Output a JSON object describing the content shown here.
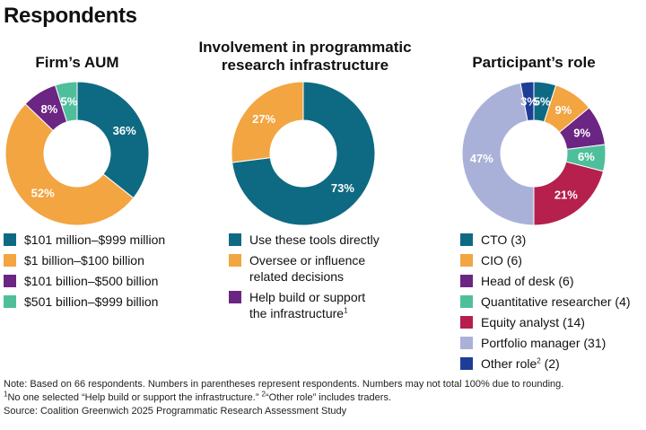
{
  "page": {
    "title": "Respondents"
  },
  "colors": {
    "teal": "#0e6a82",
    "orange": "#f2a541",
    "purple": "#6b2583",
    "green": "#4fbf9b",
    "crimson": "#b5204d",
    "lavender": "#aab1d9",
    "navy": "#1d3d96"
  },
  "chart_data": [
    {
      "type": "pie",
      "title": "Firm’s AUM",
      "start_angle_deg": 0,
      "series": [
        {
          "name": "$101 million–$999 million",
          "value": 36,
          "label": "36%",
          "color": "#0e6a82"
        },
        {
          "name": "$1 billion–$100 billion",
          "value": 52,
          "label": "52%",
          "color": "#f2a541"
        },
        {
          "name": "$101 billion–$500 billion",
          "value": 8,
          "label": "8%",
          "color": "#6b2583"
        },
        {
          "name": "$501 billion–$999 billion",
          "value": 5,
          "label": "5%",
          "color": "#4fbf9b"
        }
      ]
    },
    {
      "type": "pie",
      "title": "Involvement in programmatic\nresearch infrastructure",
      "start_angle_deg": 0,
      "series": [
        {
          "name": "Use these tools directly",
          "value": 73,
          "label": "73%",
          "color": "#0e6a82"
        },
        {
          "name": "Oversee or influence\nrelated decisions",
          "value": 27,
          "label": "27%",
          "color": "#f2a541"
        },
        {
          "name": "Help build or support\nthe infrastructure",
          "superscript": "1",
          "value": 0,
          "label": "",
          "color": "#6b2583"
        }
      ]
    },
    {
      "type": "pie",
      "title": "Participant’s role",
      "start_angle_deg": 0,
      "series": [
        {
          "name": "CTO (3)",
          "value": 5,
          "label": "5%",
          "color": "#0e6a82"
        },
        {
          "name": "CIO (6)",
          "value": 9,
          "label": "9%",
          "color": "#f2a541"
        },
        {
          "name": "Head of desk (6)",
          "value": 9,
          "label": "9%",
          "color": "#6b2583"
        },
        {
          "name": "Quantitative researcher (4)",
          "value": 6,
          "label": "6%",
          "color": "#4fbf9b"
        },
        {
          "name": "Equity analyst (14)",
          "value": 21,
          "label": "21%",
          "color": "#b5204d"
        },
        {
          "name": "Portfolio manager (31)",
          "value": 47,
          "label": "47%",
          "color": "#aab1d9"
        },
        {
          "name": "Other role",
          "superscript": "2",
          "name_suffix": " (2)",
          "value": 3,
          "label": "3%",
          "color": "#1d3d96"
        }
      ]
    }
  ],
  "footnotes": {
    "note": "Note: Based on 66 respondents. Numbers in parentheses represent respondents. Numbers may not total 100% due to rounding.",
    "line2_sup1": "1",
    "line2_a": "No one selected “Help build or support the infrastructure.” ",
    "line2_sup2": "2",
    "line2_b": "“Other role” includes traders.",
    "source": "Source: Coalition Greenwich 2025 Programmatic Research Assessment Study"
  }
}
